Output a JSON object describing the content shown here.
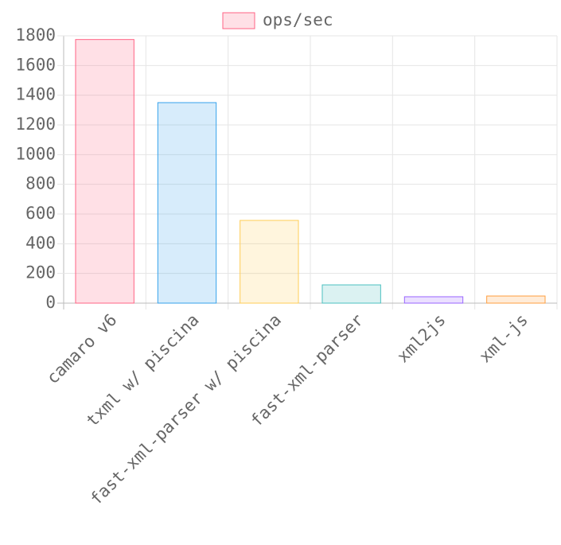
{
  "chart_data": {
    "type": "bar",
    "categories": [
      "camaro v6",
      "txml w/ piscina",
      "fast-xml-parser w/ piscina",
      "fast-xml-parser",
      "xml2js",
      "xml-js"
    ],
    "series": [
      {
        "name": "ops/sec",
        "colors": [
          "#ff6384",
          "#36a2eb",
          "#ffcd56",
          "#4bc0c0",
          "#9966ff",
          "#ff9f40"
        ],
        "values": [
          1775,
          1350,
          557,
          123,
          43,
          48
        ]
      }
    ],
    "ylim": [
      0,
      1800
    ],
    "yticks": [
      0,
      200,
      400,
      600,
      800,
      1000,
      1200,
      1400,
      1600,
      1800
    ],
    "grid": true,
    "legend": "top"
  }
}
